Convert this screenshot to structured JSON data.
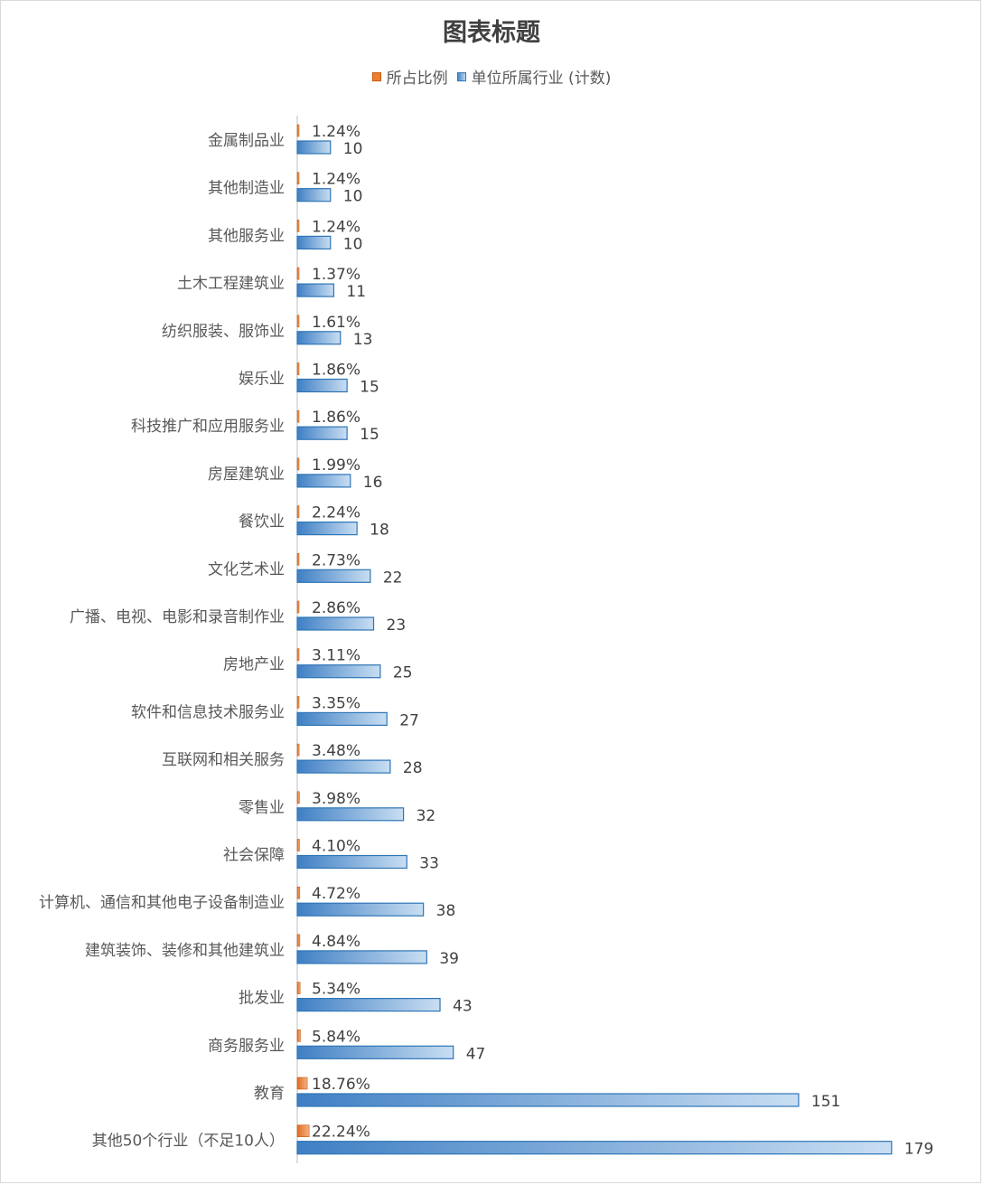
{
  "chart_data": {
    "type": "bar",
    "orientation": "horizontal",
    "title": "图表标题",
    "categories": [
      "金属制品业",
      "其他制造业",
      "其他服务业",
      "土木工程建筑业",
      "纺织服装、服饰业",
      "娱乐业",
      "科技推广和应用服务业",
      "房屋建筑业",
      "餐饮业",
      "文化艺术业",
      "广播、电视、电影和录音制作业",
      "房地产业",
      "软件和信息技术服务业",
      "互联网和相关服务",
      "零售业",
      "社会保障",
      "计算机、通信和其他电子设备制造业",
      "建筑装饰、装修和其他建筑业",
      "批发业",
      "商务服务业",
      "教育",
      "其他50个行业（不足10人）"
    ],
    "series": [
      {
        "name": "所占比例",
        "color": "#ed7d31",
        "values": [
          0.0124,
          0.0124,
          0.0124,
          0.0137,
          0.0161,
          0.0186,
          0.0186,
          0.0199,
          0.0224,
          0.0273,
          0.0286,
          0.0311,
          0.0335,
          0.0348,
          0.0398,
          0.041,
          0.0472,
          0.0484,
          0.0534,
          0.0584,
          0.1876,
          0.2224
        ],
        "labels": [
          "1.24%",
          "1.24%",
          "1.24%",
          "1.37%",
          "1.61%",
          "1.86%",
          "1.86%",
          "1.99%",
          "2.24%",
          "2.73%",
          "2.86%",
          "3.11%",
          "3.35%",
          "3.48%",
          "3.98%",
          "4.10%",
          "4.72%",
          "4.84%",
          "5.34%",
          "5.84%",
          "18.76%",
          "22.24%"
        ]
      },
      {
        "name": "单位所属行业 (计数)",
        "color": "#5b9bd5",
        "values": [
          10,
          10,
          10,
          11,
          13,
          15,
          15,
          16,
          18,
          22,
          23,
          25,
          27,
          28,
          32,
          33,
          38,
          39,
          43,
          47,
          151,
          179
        ],
        "labels": [
          "10",
          "10",
          "10",
          "11",
          "13",
          "15",
          "15",
          "16",
          "18",
          "22",
          "23",
          "25",
          "27",
          "28",
          "32",
          "33",
          "38",
          "39",
          "43",
          "47",
          "151",
          "179"
        ]
      }
    ],
    "legend_position": "top",
    "grid": false
  }
}
